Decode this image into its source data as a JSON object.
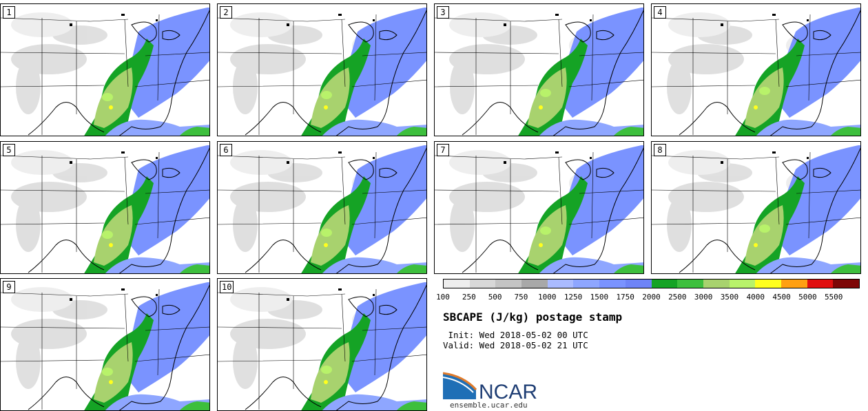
{
  "panels": [
    {
      "label": "1"
    },
    {
      "label": "2"
    },
    {
      "label": "3"
    },
    {
      "label": "4"
    },
    {
      "label": "5"
    },
    {
      "label": "6"
    },
    {
      "label": "7"
    },
    {
      "label": "8"
    },
    {
      "label": "9"
    },
    {
      "label": "10"
    }
  ],
  "legend": {
    "colors": [
      "#eeeeee",
      "#d8d8d8",
      "#c4c4c4",
      "#a8a8a8",
      "#aabbff",
      "#8ea6ff",
      "#7a93ff",
      "#6e84f7",
      "#15a325",
      "#3dbf3d",
      "#a8d26e",
      "#b8f26a",
      "#ffff1e",
      "#ffa012",
      "#e00f0f",
      "#7d0606"
    ],
    "ticks": [
      "100",
      "250",
      "500",
      "750",
      "1000",
      "1250",
      "1500",
      "1750",
      "2000",
      "2500",
      "3000",
      "3500",
      "4000",
      "4500",
      "5000",
      "5500"
    ]
  },
  "title": "SBCAPE (J/kg) postage stamp",
  "init_line": " Init: Wed 2018-05-02 00 UTC",
  "valid_line": "Valid: Wed 2018-05-02 21 UTC",
  "logo_text": "NCAR",
  "website": "ensemble.ucar.edu"
}
